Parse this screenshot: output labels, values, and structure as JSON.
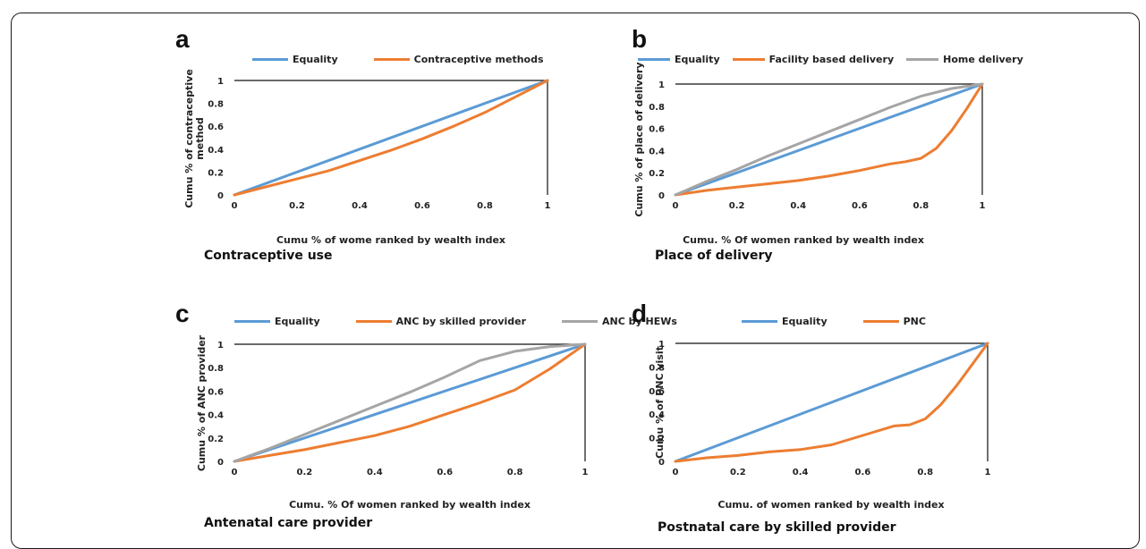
{
  "chart_data": [
    {
      "type": "line",
      "panel_letter": "a",
      "caption": "Contraceptive use",
      "xlabel": "Cumu % of wome ranked by wealth index",
      "ylabel_lines": [
        "Cumu % of contraceptive",
        "method"
      ],
      "xlim": [
        0,
        1
      ],
      "ylim": [
        0,
        1
      ],
      "xticks": [
        "0",
        "0.2",
        "0.4",
        "0.6",
        "0.8",
        "1"
      ],
      "yticks": [
        "0",
        "0.2",
        "0.4",
        "0.6",
        "0.8",
        "1"
      ],
      "legend_position": "top",
      "series": [
        {
          "name": "Equality",
          "color": "#5b9bd5",
          "x": [
            0,
            1
          ],
          "y": [
            0,
            1
          ]
        },
        {
          "name": "Contraceptive methods",
          "color": "#ed7d31",
          "x": [
            0,
            0.1,
            0.2,
            0.3,
            0.4,
            0.5,
            0.6,
            0.7,
            0.8,
            0.9,
            1
          ],
          "y": [
            0,
            0.07,
            0.14,
            0.21,
            0.3,
            0.39,
            0.49,
            0.6,
            0.72,
            0.86,
            1
          ]
        }
      ]
    },
    {
      "type": "line",
      "panel_letter": "b",
      "caption": "Place of delivery",
      "xlabel": "Cumu. % Of women ranked by wealth index",
      "ylabel_lines": [
        "Cumu % of place of delivery"
      ],
      "xlim": [
        0,
        1
      ],
      "ylim": [
        0,
        1
      ],
      "xticks": [
        "0",
        "0.2",
        "0.4",
        "0.6",
        "0.8",
        "1"
      ],
      "yticks": [
        "0",
        "0.2",
        "0.4",
        "0.6",
        "0.8",
        "1"
      ],
      "legend_position": "top",
      "series": [
        {
          "name": "Equality",
          "color": "#5b9bd5",
          "x": [
            0,
            1
          ],
          "y": [
            0,
            1
          ]
        },
        {
          "name": "Facility based delivery",
          "color": "#ed7d31",
          "x": [
            0,
            0.1,
            0.2,
            0.3,
            0.4,
            0.5,
            0.6,
            0.7,
            0.75,
            0.8,
            0.85,
            0.9,
            0.95,
            1
          ],
          "y": [
            0,
            0.04,
            0.07,
            0.1,
            0.13,
            0.17,
            0.22,
            0.28,
            0.3,
            0.33,
            0.42,
            0.58,
            0.78,
            1
          ]
        },
        {
          "name": "Home delivery",
          "color": "#a5a5a5",
          "x": [
            0,
            0.1,
            0.2,
            0.3,
            0.4,
            0.5,
            0.6,
            0.7,
            0.8,
            0.9,
            1
          ],
          "y": [
            0,
            0.12,
            0.23,
            0.35,
            0.46,
            0.57,
            0.68,
            0.79,
            0.89,
            0.96,
            1
          ]
        }
      ]
    },
    {
      "type": "line",
      "panel_letter": "c",
      "caption": "Antenatal care provider",
      "xlabel": "Cumu. % Of women ranked by wealth index",
      "ylabel_lines": [
        "Cumu % of ANC provider"
      ],
      "xlim": [
        0,
        1
      ],
      "ylim": [
        0,
        1
      ],
      "xticks": [
        "0",
        "0.2",
        "0.4",
        "0.6",
        "0.8",
        "1"
      ],
      "yticks": [
        "0",
        "0.2",
        "0.4",
        "0.6",
        "0.8",
        "1"
      ],
      "legend_position": "top",
      "series": [
        {
          "name": "Equality",
          "color": "#5b9bd5",
          "x": [
            0,
            1
          ],
          "y": [
            0,
            1
          ]
        },
        {
          "name": "ANC by skilled provider",
          "color": "#ed7d31",
          "x": [
            0,
            0.1,
            0.2,
            0.3,
            0.4,
            0.5,
            0.6,
            0.7,
            0.8,
            0.9,
            1
          ],
          "y": [
            0,
            0.05,
            0.1,
            0.16,
            0.22,
            0.3,
            0.4,
            0.5,
            0.61,
            0.79,
            1
          ]
        },
        {
          "name": "ANC by HEWs",
          "color": "#a5a5a5",
          "x": [
            0,
            0.1,
            0.2,
            0.3,
            0.4,
            0.5,
            0.6,
            0.7,
            0.8,
            0.9,
            1
          ],
          "y": [
            0,
            0.11,
            0.23,
            0.35,
            0.47,
            0.59,
            0.72,
            0.86,
            0.94,
            0.98,
            1
          ]
        }
      ]
    },
    {
      "type": "line",
      "panel_letter": "d",
      "caption": "Postnatal care by skilled provider",
      "xlabel": "Cumu. of women ranked by wealth index",
      "ylabel_lines": [
        "Cumu % of PNC visit"
      ],
      "xlim": [
        0,
        1
      ],
      "ylim": [
        0,
        1
      ],
      "xticks": [
        "0",
        "0.2",
        "0.4",
        "0.6",
        "0.8",
        "1"
      ],
      "yticks": [
        "0",
        "0.2",
        "0.4",
        "0.6",
        "0.8",
        "1"
      ],
      "legend_position": "top",
      "series": [
        {
          "name": "Equality",
          "color": "#5b9bd5",
          "x": [
            0,
            1
          ],
          "y": [
            0,
            1
          ]
        },
        {
          "name": "PNC",
          "color": "#ed7d31",
          "x": [
            0,
            0.1,
            0.2,
            0.3,
            0.4,
            0.5,
            0.6,
            0.7,
            0.75,
            0.8,
            0.85,
            0.9,
            0.95,
            1
          ],
          "y": [
            0,
            0.03,
            0.05,
            0.08,
            0.1,
            0.14,
            0.22,
            0.3,
            0.31,
            0.36,
            0.48,
            0.64,
            0.82,
            1
          ]
        }
      ]
    }
  ]
}
